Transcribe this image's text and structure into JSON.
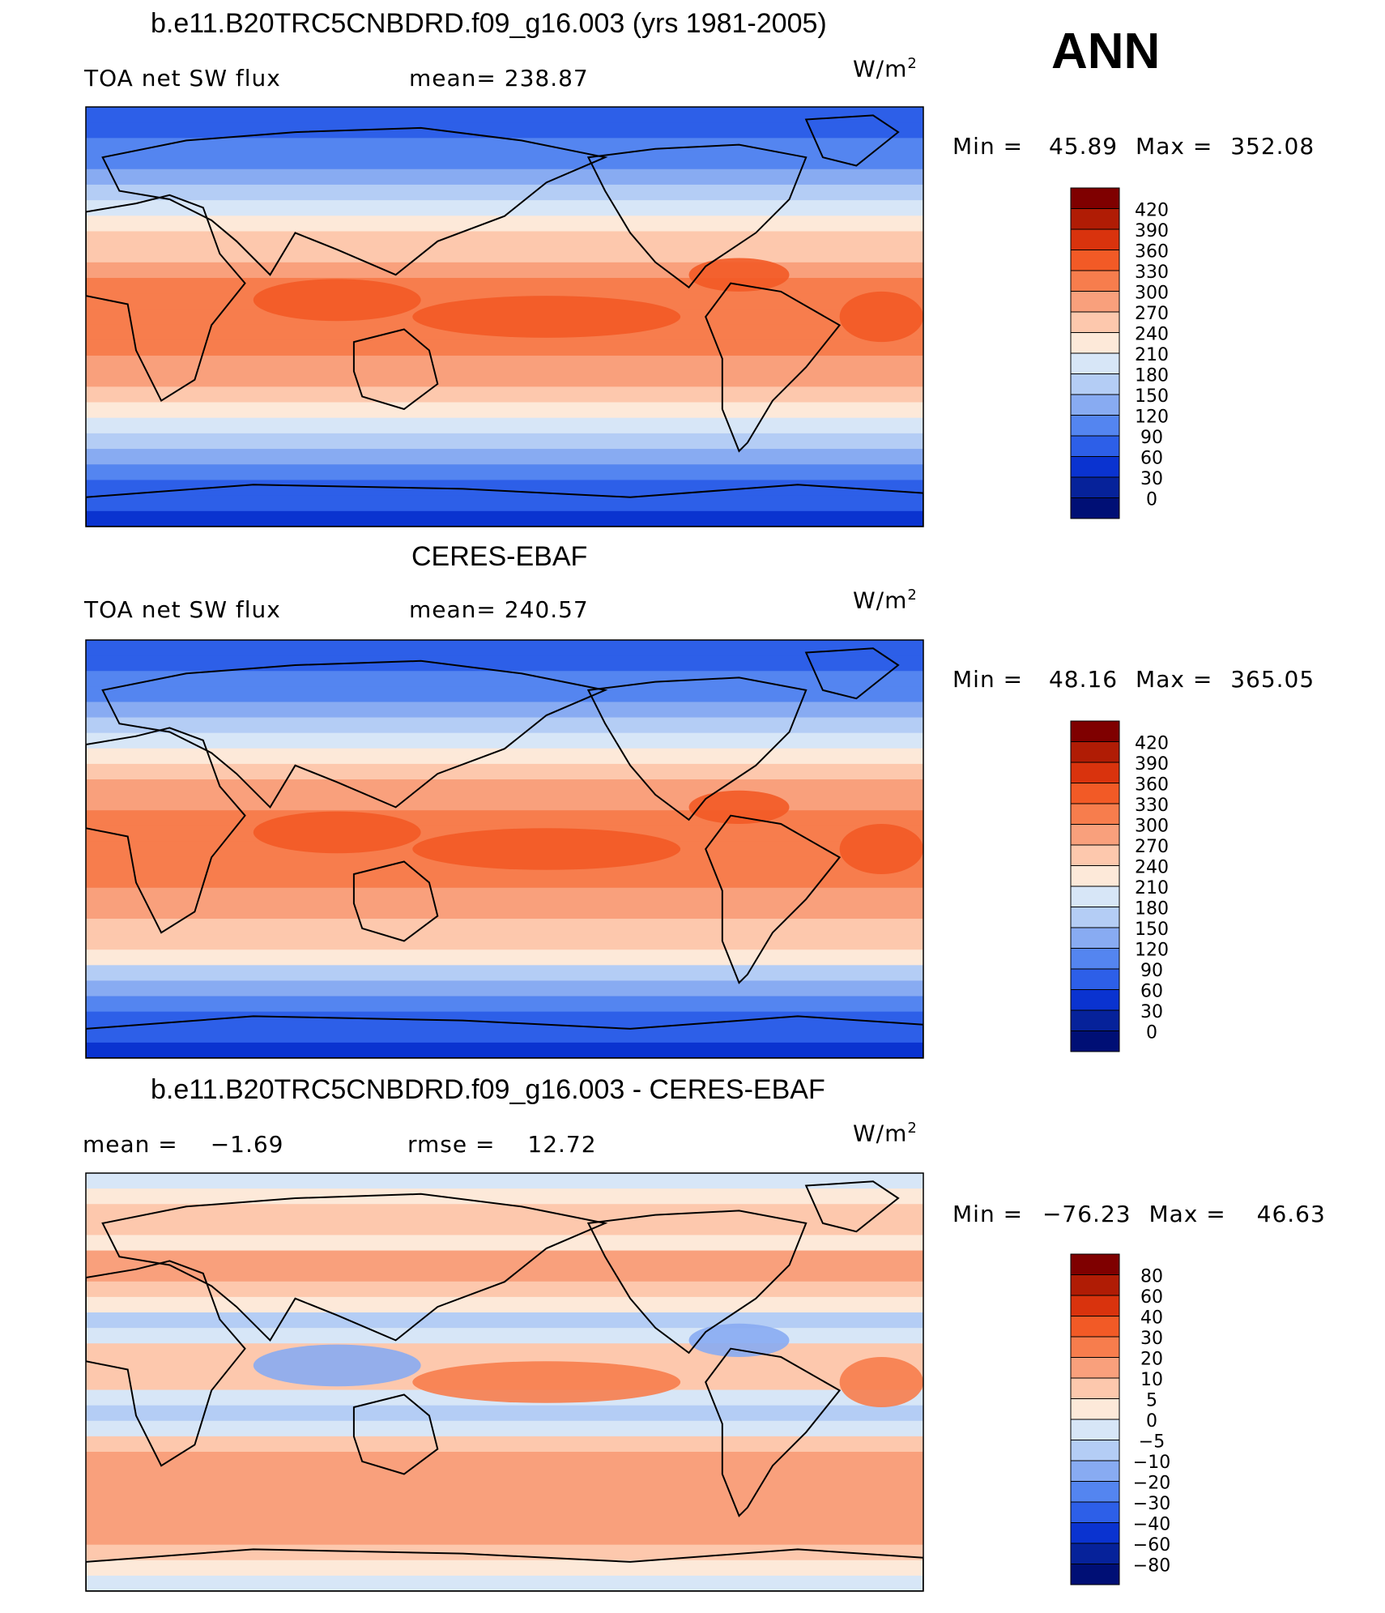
{
  "season": "ANN",
  "unit": "W/m",
  "unit_exp": "2",
  "chart_data": [
    {
      "type": "heatmap",
      "title": "b.e11.B20TRC5CNBDRD.f09_g16.003 (yrs 1981-2005)",
      "variable": "TOA net SW flux",
      "stat1": "mean= 238.87",
      "stat2": "",
      "min_label": "Min =",
      "min_value": "45.89",
      "max_label": "Max =",
      "max_value": "352.08",
      "levels": [
        "420",
        "390",
        "360",
        "330",
        "300",
        "270",
        "240",
        "210",
        "180",
        "150",
        "120",
        "90",
        "60",
        "30",
        "0"
      ],
      "colors": [
        "#7f0000",
        "#b01c05",
        "#d9330d",
        "#f25a26",
        "#f77d4d",
        "#f9a07c",
        "#fdc8ad",
        "#fde9d9",
        "#d7e6f7",
        "#b4cdf5",
        "#88abf2",
        "#5485f0",
        "#2d5fe8",
        "#0a33d0",
        "#06229a",
        "#000f75"
      ],
      "zonal_profile": [
        60,
        75,
        90,
        105,
        140,
        170,
        195,
        215,
        240,
        265,
        290,
        300,
        305,
        310,
        305,
        300,
        295,
        280,
        260,
        235,
        205,
        175,
        140,
        110,
        85,
        70,
        55
      ]
    },
    {
      "type": "heatmap",
      "title": "CERES-EBAF",
      "variable": "TOA net SW flux",
      "stat1": "mean= 240.57",
      "stat2": "",
      "min_label": "Min =",
      "min_value": "48.16",
      "max_label": "Max =",
      "max_value": "365.05",
      "levels": [
        "420",
        "390",
        "360",
        "330",
        "300",
        "270",
        "240",
        "210",
        "180",
        "150",
        "120",
        "90",
        "60",
        "30",
        "0"
      ],
      "colors": [
        "#7f0000",
        "#b01c05",
        "#d9330d",
        "#f25a26",
        "#f77d4d",
        "#f9a07c",
        "#fdc8ad",
        "#fde9d9",
        "#d7e6f7",
        "#b4cdf5",
        "#88abf2",
        "#5485f0",
        "#2d5fe8",
        "#0a33d0",
        "#06229a",
        "#000f75"
      ],
      "zonal_profile": [
        60,
        75,
        90,
        110,
        145,
        175,
        200,
        220,
        245,
        270,
        295,
        305,
        310,
        318,
        312,
        305,
        298,
        285,
        265,
        240,
        210,
        178,
        145,
        115,
        88,
        72,
        58
      ]
    },
    {
      "type": "heatmap",
      "title": "b.e11.B20TRC5CNBDRD.f09_g16.003 - CERES-EBAF",
      "variable": "mean =",
      "variable_value": "−1.69",
      "stat1": "rmse =",
      "stat1_value": "12.72",
      "min_label": "Min =",
      "min_value": "−76.23",
      "max_label": "Max =",
      "max_value": "46.63",
      "levels": [
        "80",
        "60",
        "40",
        "30",
        "20",
        "10",
        "5",
        "0",
        "−5",
        "−10",
        "−20",
        "−30",
        "−40",
        "−60",
        "−80"
      ],
      "colors": [
        "#7f0000",
        "#b01c05",
        "#d9330d",
        "#f25a26",
        "#f77d4d",
        "#f9a07c",
        "#fdc8ad",
        "#fde9d9",
        "#d7e6f7",
        "#b4cdf5",
        "#88abf2",
        "#5485f0",
        "#2d5fe8",
        "#0a33d0",
        "#06229a",
        "#000f75"
      ],
      "zonal_profile": [
        -5,
        2,
        8,
        6,
        4,
        10,
        12,
        6,
        2,
        -6,
        -4,
        5,
        8,
        6,
        -2,
        -8,
        -4,
        6,
        10,
        14,
        12,
        10,
        18,
        14,
        8,
        4,
        -2
      ]
    }
  ]
}
